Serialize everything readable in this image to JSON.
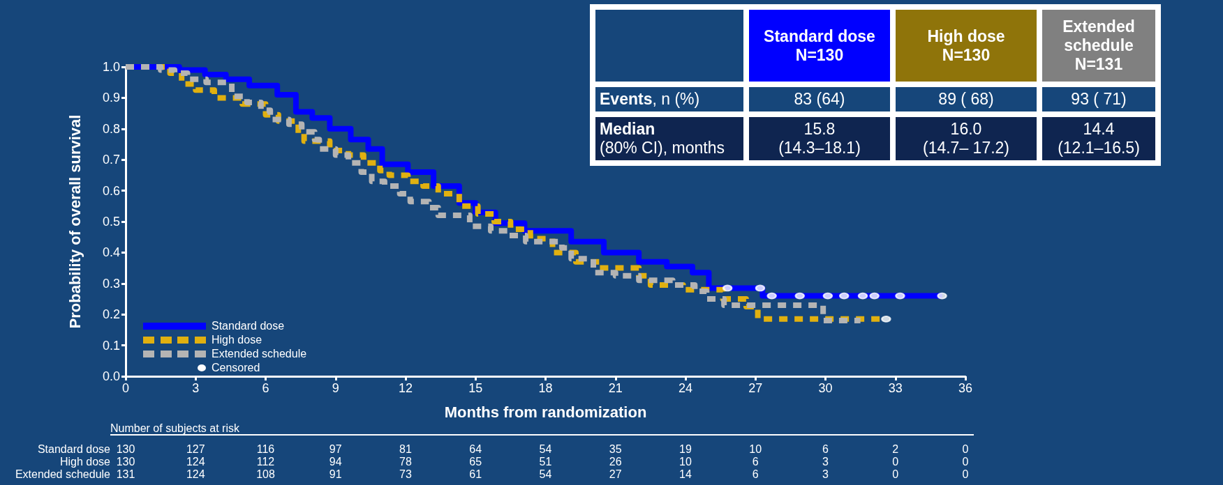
{
  "chart_data": {
    "type": "step",
    "xlabel": "Months from randomization",
    "ylabel": "Probability of overall survival",
    "xlim": [
      0,
      36
    ],
    "xticks": [
      0,
      3,
      6,
      9,
      12,
      15,
      18,
      21,
      24,
      27,
      30,
      33,
      36
    ],
    "ylim": [
      0,
      1
    ],
    "yticks": [
      {
        "value": 0,
        "label": "0.0"
      },
      0.1,
      0.2,
      0.3,
      0.4,
      0.5,
      0.6,
      0.7,
      0.8,
      0.9,
      {
        "value": 1,
        "label": "1.0"
      }
    ],
    "grid": false,
    "legend": "bottom left",
    "marker": "none",
    "series": [
      {
        "name": "Standard dose",
        "color": "#0000ff",
        "line_style": "solid",
        "x": [
          0,
          2.3,
          3.4,
          4.3,
          5.3,
          6.5,
          7.3,
          8.0,
          8.75,
          9.65,
          10.4,
          11.0,
          12.1,
          13.2,
          14.3,
          15.0,
          15.85,
          17.1,
          19.1,
          20.5,
          22.0,
          23.2,
          24.3,
          25.0,
          27.3,
          35.0
        ],
        "values": [
          1.0,
          0.99,
          0.975,
          0.96,
          0.94,
          0.91,
          0.855,
          0.835,
          0.8,
          0.765,
          0.735,
          0.685,
          0.66,
          0.615,
          0.56,
          0.53,
          0.495,
          0.47,
          0.435,
          0.4,
          0.37,
          0.355,
          0.335,
          0.285,
          0.26,
          0.26
        ]
      },
      {
        "name": "High dose",
        "color": "#e0b010",
        "line_style": "dashed",
        "x": [
          0,
          1.9,
          2.4,
          3.0,
          3.8,
          5.0,
          6.0,
          6.55,
          7.4,
          7.65,
          8.75,
          9.55,
          10.2,
          10.9,
          11.3,
          12.1,
          12.75,
          13.4,
          14.3,
          15.1,
          15.8,
          16.5,
          17.35,
          18.3,
          19.3,
          20.3,
          22.0,
          22.5,
          23.9,
          25.6,
          26.6,
          27.1,
          32.6
        ],
        "values": [
          1.0,
          0.98,
          0.945,
          0.925,
          0.9,
          0.88,
          0.845,
          0.825,
          0.785,
          0.76,
          0.73,
          0.715,
          0.69,
          0.665,
          0.65,
          0.63,
          0.615,
          0.59,
          0.55,
          0.525,
          0.5,
          0.475,
          0.445,
          0.4,
          0.37,
          0.35,
          0.325,
          0.295,
          0.28,
          0.25,
          0.225,
          0.185,
          0.185
        ]
      },
      {
        "name": "Extended schedule",
        "color": "#b4b4b4",
        "line_style": "dashed",
        "x": [
          0,
          1.5,
          2.1,
          2.65,
          3.45,
          4.55,
          5.2,
          5.8,
          6.2,
          7.0,
          7.55,
          8.1,
          8.3,
          9.0,
          9.55,
          10.1,
          10.55,
          11.1,
          11.75,
          12.2,
          13.0,
          13.4,
          14.75,
          15.65,
          16.4,
          17.15,
          18.7,
          19.1,
          20.05,
          21.0,
          22.0,
          23.45,
          24.4,
          24.9,
          25.65,
          29.9,
          31.5
        ],
        "values": [
          1.0,
          0.99,
          0.98,
          0.96,
          0.95,
          0.905,
          0.885,
          0.86,
          0.83,
          0.815,
          0.79,
          0.765,
          0.735,
          0.715,
          0.69,
          0.66,
          0.63,
          0.615,
          0.59,
          0.565,
          0.545,
          0.52,
          0.485,
          0.47,
          0.455,
          0.435,
          0.415,
          0.38,
          0.335,
          0.325,
          0.31,
          0.295,
          0.275,
          0.25,
          0.23,
          0.18,
          0.18
        ]
      },
      {
        "name": "Censored",
        "type": "scatter",
        "marker": "circle",
        "color": "#ffffff",
        "x": [
          25.8,
          27.2,
          27.7,
          28.9,
          30.1,
          30.8,
          31.6,
          32.1,
          33.2,
          35.0,
          32.6
        ],
        "values": [
          0.285,
          0.285,
          0.26,
          0.26,
          0.26,
          0.26,
          0.26,
          0.26,
          0.26,
          0.26,
          0.185
        ]
      }
    ],
    "annotations": [
      "Standard dose\nN=130",
      "High dose\nN=130",
      "Extended\nschedule\nN=131",
      "Events, n (%)",
      "83 (64)",
      "89 ( 68)",
      "93 ( 71)",
      "Median\n(80% CI), months",
      "15.8\n(14.3–18.1)",
      "16.0\n(14.7– 17.2)",
      "14.4\n(12.1–16.5)",
      "Number of subjects at risk",
      "Standard dose",
      "130",
      "127",
      "116",
      "97",
      "81",
      "64",
      "54",
      "35",
      "19",
      "10",
      "6",
      "2",
      "0",
      "High dose",
      "130",
      "124",
      "112",
      "94",
      "78",
      "65",
      "51",
      "26",
      "10",
      "6",
      "3",
      "0",
      "0",
      "Extended schedule",
      "131",
      "124",
      "108",
      "91",
      "73",
      "61",
      "54",
      "27",
      "14",
      "6",
      "3",
      "0",
      "0"
    ]
  }
}
